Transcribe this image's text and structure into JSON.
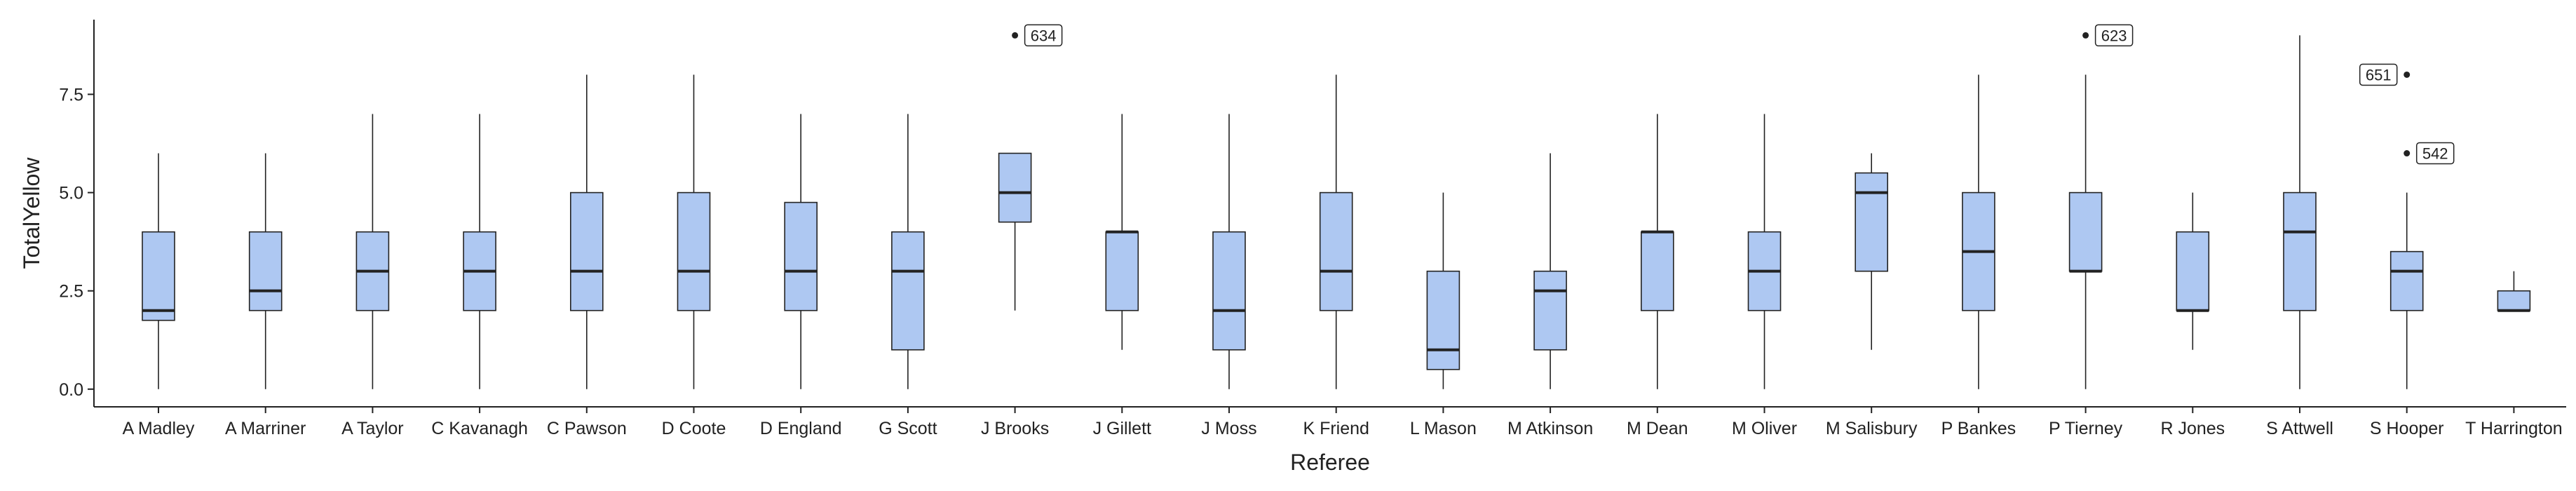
{
  "chart_data": {
    "type": "box",
    "xlabel": "Referee",
    "ylabel": "TotalYellow",
    "ylim": [
      -0.45,
      9.4
    ],
    "yticks": [
      0.0,
      2.5,
      5.0,
      7.5
    ],
    "ytick_labels": [
      "0.0",
      "2.5",
      "5.0",
      "7.5"
    ],
    "grid": false,
    "legend": "none",
    "box_fill": "#aec8f2",
    "box_stroke": "#222222",
    "categories": [
      "A Madley",
      "A Marriner",
      "A Taylor",
      "C Kavanagh",
      "C Pawson",
      "D Coote",
      "D England",
      "G Scott",
      "J Brooks",
      "J Gillett",
      "J Moss",
      "K Friend",
      "L Mason",
      "M Atkinson",
      "M Dean",
      "M Oliver",
      "M Salisbury",
      "P Bankes",
      "P Tierney",
      "R Jones",
      "S Attwell",
      "S Hooper",
      "T Harrington"
    ],
    "boxes": [
      {
        "min": 0,
        "q1": 1.75,
        "median": 2,
        "q3": 4,
        "max": 6
      },
      {
        "min": 0,
        "q1": 2,
        "median": 2.5,
        "q3": 4,
        "max": 6
      },
      {
        "min": 0,
        "q1": 2,
        "median": 3,
        "q3": 4,
        "max": 7
      },
      {
        "min": 0,
        "q1": 2,
        "median": 3,
        "q3": 4,
        "max": 7
      },
      {
        "min": 0,
        "q1": 2,
        "median": 3,
        "q3": 5,
        "max": 8
      },
      {
        "min": 0,
        "q1": 2,
        "median": 3,
        "q3": 5,
        "max": 8
      },
      {
        "min": 0,
        "q1": 2,
        "median": 3,
        "q3": 4.75,
        "max": 7
      },
      {
        "min": 0,
        "q1": 1,
        "median": 3,
        "q3": 4,
        "max": 7
      },
      {
        "min": 2,
        "q1": 4.25,
        "median": 5,
        "q3": 6,
        "max": 6
      },
      {
        "min": 1,
        "q1": 2,
        "median": 4,
        "q3": 4,
        "max": 7
      },
      {
        "min": 0,
        "q1": 1,
        "median": 2,
        "q3": 4,
        "max": 7
      },
      {
        "min": 0,
        "q1": 2,
        "median": 3,
        "q3": 5,
        "max": 8
      },
      {
        "min": 0,
        "q1": 0.5,
        "median": 1,
        "q3": 3,
        "max": 5
      },
      {
        "min": 0,
        "q1": 1,
        "median": 2.5,
        "q3": 3,
        "max": 6
      },
      {
        "min": 0,
        "q1": 2,
        "median": 4,
        "q3": 4,
        "max": 7
      },
      {
        "min": 0,
        "q1": 2,
        "median": 3,
        "q3": 4,
        "max": 7
      },
      {
        "min": 1,
        "q1": 3,
        "median": 5,
        "q3": 5.5,
        "max": 6
      },
      {
        "min": 0,
        "q1": 2,
        "median": 3.5,
        "q3": 5,
        "max": 8
      },
      {
        "min": 0,
        "q1": 3,
        "median": 3,
        "q3": 5,
        "max": 8
      },
      {
        "min": 1,
        "q1": 2,
        "median": 2,
        "q3": 4,
        "max": 5
      },
      {
        "min": 0,
        "q1": 2,
        "median": 4,
        "q3": 5,
        "max": 9
      },
      {
        "min": 0,
        "q1": 2,
        "median": 3,
        "q3": 3.5,
        "max": 5
      },
      {
        "min": 2,
        "q1": 2,
        "median": 2,
        "q3": 2.5,
        "max": 3
      }
    ],
    "outliers": [
      {
        "category": "J Brooks",
        "y": 9,
        "label": "634",
        "label_side": "right"
      },
      {
        "category": "P Tierney",
        "y": 9,
        "label": "623",
        "label_side": "right"
      },
      {
        "category": "S Hooper",
        "y": 8,
        "label": "651",
        "label_side": "left"
      },
      {
        "category": "S Hooper",
        "y": 6,
        "label": "542",
        "label_side": "right"
      }
    ]
  }
}
